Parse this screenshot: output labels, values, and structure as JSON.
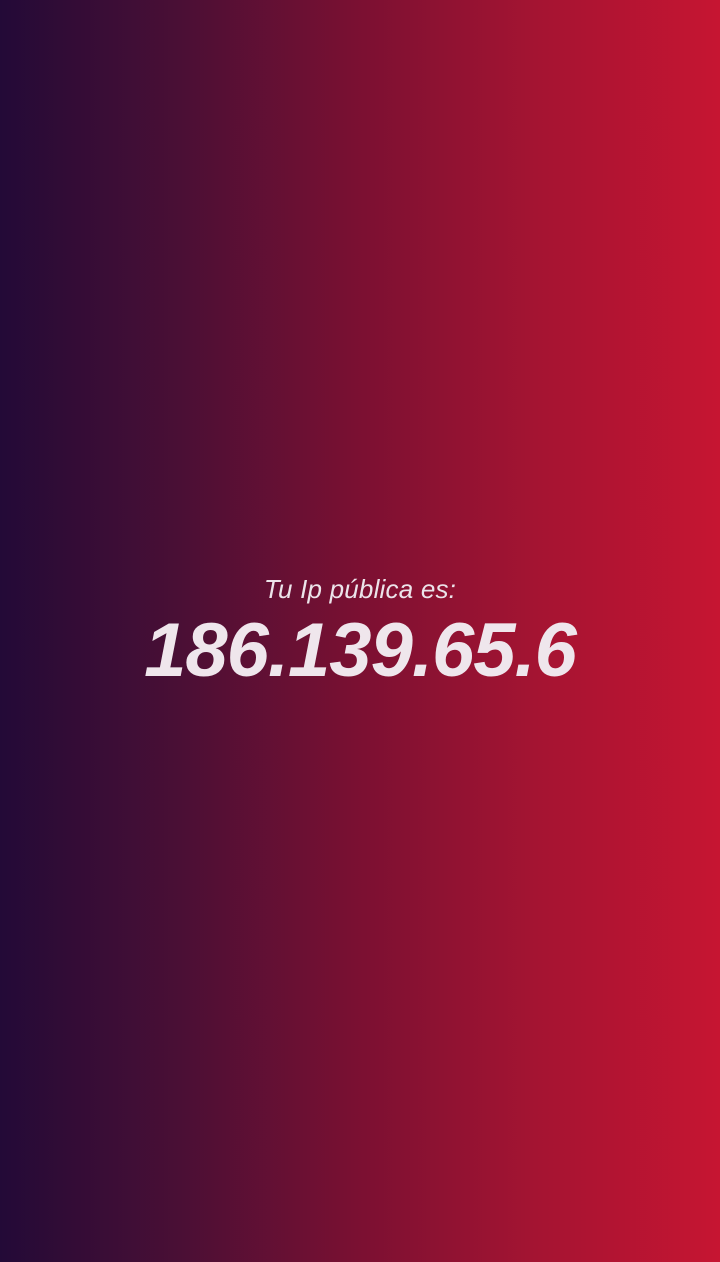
{
  "ip_card": {
    "label": "Tu Ip pública es:",
    "ip_address": "186.139.65.6"
  },
  "colors": {
    "gradient_start": "#230a37",
    "gradient_end": "#c61532",
    "text": "#efe6ec"
  }
}
